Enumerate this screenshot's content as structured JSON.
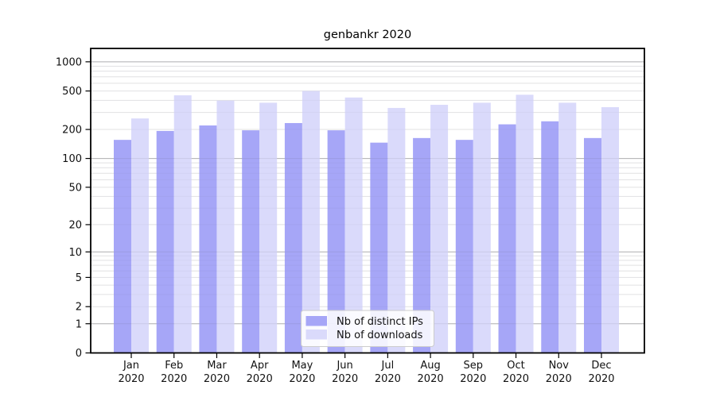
{
  "chart_data": {
    "type": "bar",
    "title": "genbankr 2020",
    "categories": [
      "Jan",
      "Feb",
      "Mar",
      "Apr",
      "May",
      "Jun",
      "Jul",
      "Aug",
      "Sep",
      "Oct",
      "Nov",
      "Dec"
    ],
    "x_year_label": "2020",
    "series": [
      {
        "name": "Nb of distinct IPs",
        "color": "#a6a6f7",
        "values": [
          156,
          193,
          220,
          196,
          233,
          196,
          146,
          163,
          156,
          226,
          243,
          163
        ]
      },
      {
        "name": "Nb of downloads",
        "color": "#dadafb",
        "values": [
          260,
          451,
          398,
          378,
          500,
          428,
          334,
          360,
          378,
          457,
          378,
          340
        ]
      }
    ],
    "yscale": "log1p",
    "yticks": [
      1000,
      500,
      200,
      100,
      50,
      20,
      10,
      5,
      2,
      1,
      0
    ],
    "major_grid_values": [
      1,
      10,
      100,
      1000
    ],
    "ylim": [
      0,
      1380
    ],
    "grid": true,
    "legend": {
      "position": "lower-center",
      "entries": [
        "Nb of distinct IPs",
        "Nb of downloads"
      ]
    }
  }
}
